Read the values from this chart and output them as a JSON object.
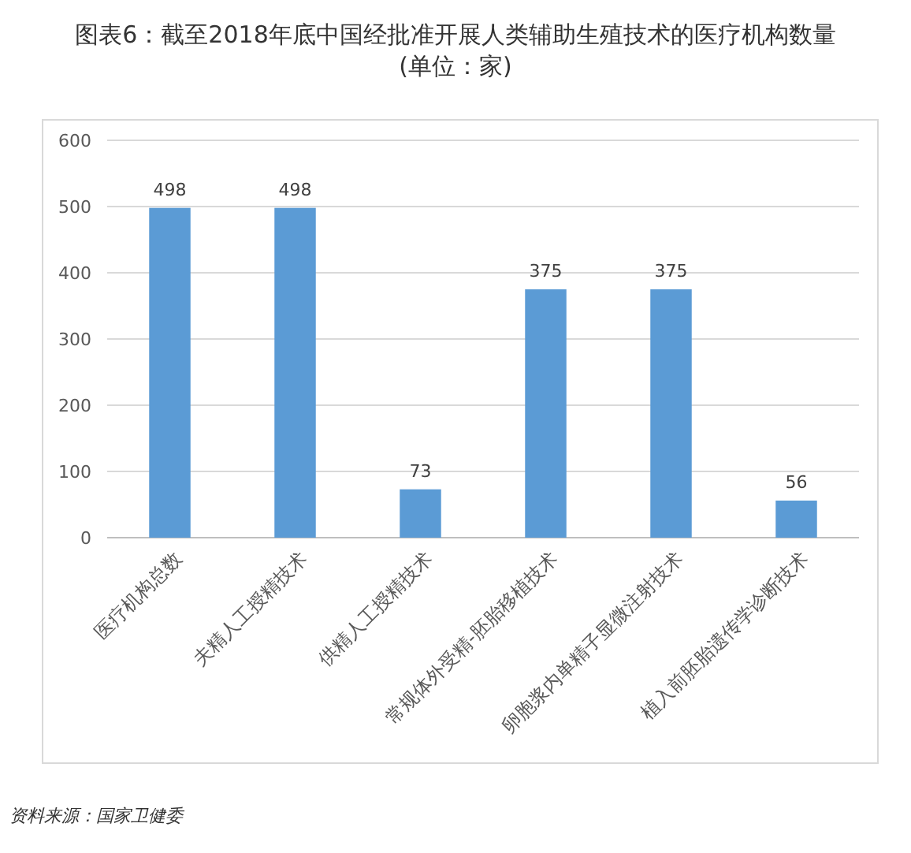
{
  "chart_data": {
    "type": "bar",
    "title": "图表6：截至2018年底中国经批准开展人类辅助生殖技术的医疗机构数量(单位：家)",
    "categories": [
      "医疗机构总数",
      "夫精人工授精技术",
      "供精人工授精技术",
      "常规体外受精-胚胎移植技术",
      "卵胞浆内单精子显微注射技术",
      "植入前胚胎遗传学诊断技术"
    ],
    "values": [
      498,
      498,
      73,
      375,
      375,
      56
    ],
    "color": "#5b9bd5",
    "ylim": [
      0,
      600
    ],
    "yticks": [
      0,
      100,
      200,
      300,
      400,
      500,
      600
    ],
    "grid": "y",
    "data_labels": true,
    "annotations": [
      "资料来源：国家卫健委"
    ]
  }
}
